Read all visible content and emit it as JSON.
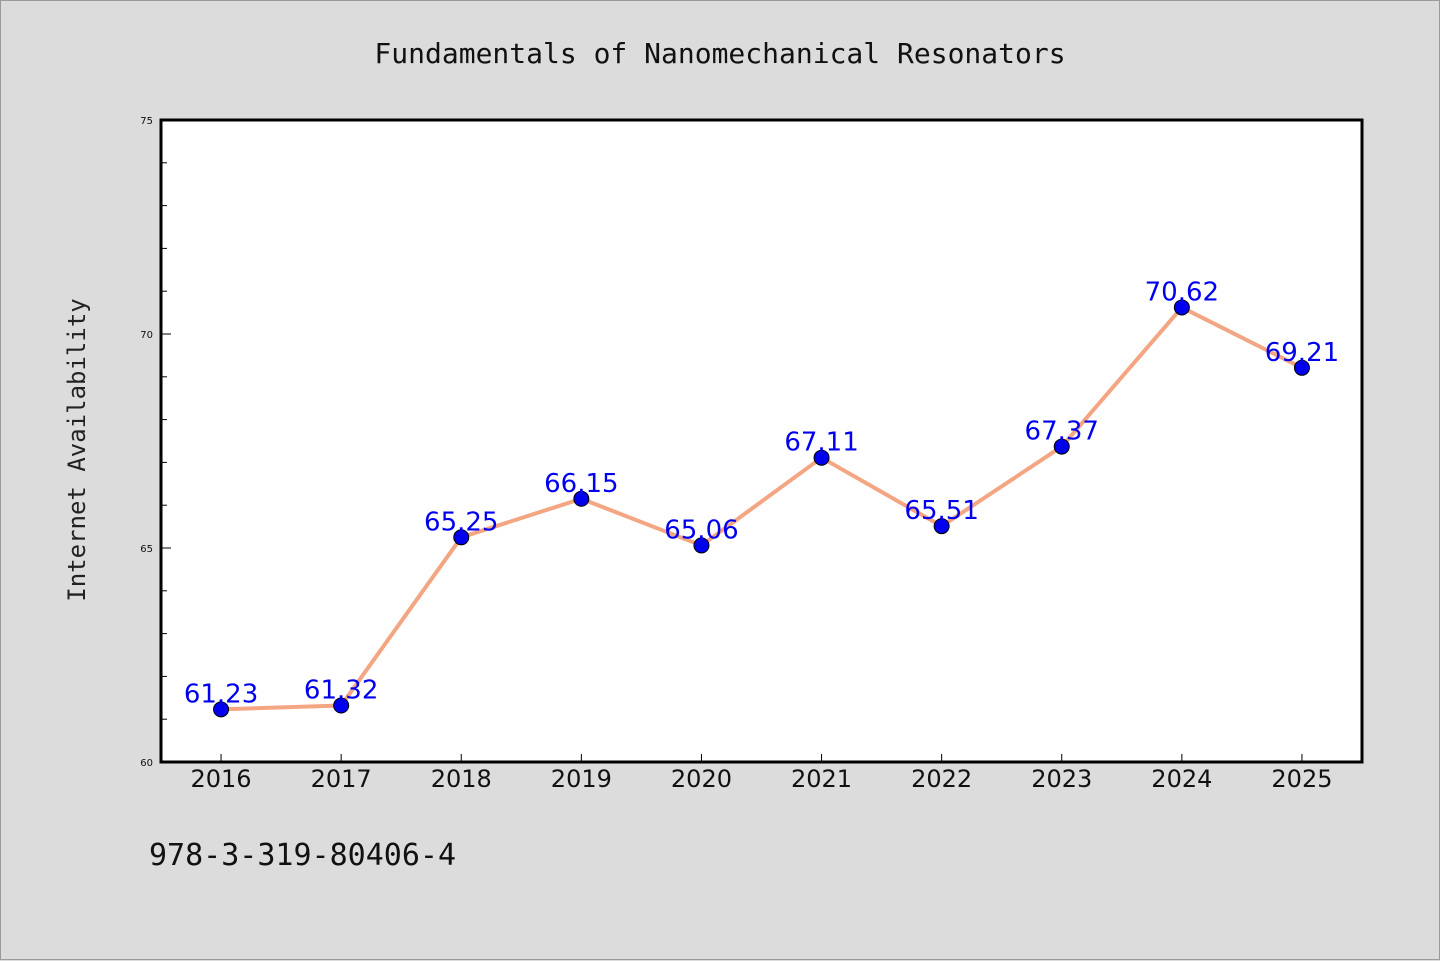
{
  "chart_data": {
    "type": "line",
    "title": "Fundamentals of Nanomechanical Resonators",
    "xlabel": "",
    "ylabel": "Internet Availability",
    "categories": [
      "2016",
      "2017",
      "2018",
      "2019",
      "2020",
      "2021",
      "2022",
      "2023",
      "2024",
      "2025"
    ],
    "series": [
      {
        "values": [
          61.23,
          61.32,
          65.25,
          66.15,
          65.06,
          67.11,
          65.51,
          67.37,
          70.62,
          69.21
        ],
        "data_labels": [
          "61.23",
          "61.32",
          "65.25",
          "66.15",
          "65.06",
          "67.11",
          "65.51",
          "67.37",
          "70.62",
          "69.21"
        ]
      }
    ],
    "ylim": [
      60,
      75
    ],
    "yticks": [
      "60",
      "65",
      "70",
      "75"
    ],
    "grid": false,
    "legend": "none",
    "line_color": "#f4a582",
    "marker_color": "#0000ee",
    "label_color": "#0000ee"
  },
  "footer": {
    "isbn": "978-3-319-80406-4"
  }
}
